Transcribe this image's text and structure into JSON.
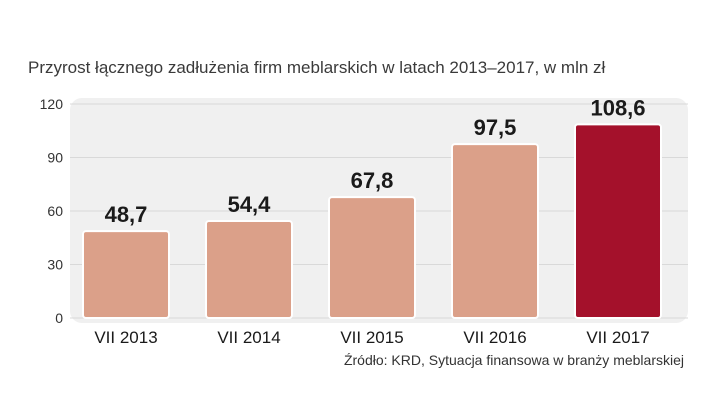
{
  "chart_data": {
    "type": "bar",
    "title": "Przyrost łącznego zadłużenia firm meblarskich w latach 2013–2017, w mln zł",
    "categories": [
      "VII 2013",
      "VII 2014",
      "VII 2015",
      "VII 2016",
      "VII 2017"
    ],
    "values": [
      48.7,
      54.4,
      67.8,
      97.5,
      108.6
    ],
    "value_labels": [
      "48,7",
      "54,4",
      "67,8",
      "97,5",
      "108,6"
    ],
    "yticks": [
      0,
      30,
      60,
      90,
      120
    ],
    "ylim": [
      0,
      120
    ],
    "xlabel": "",
    "ylabel": "",
    "grid": true,
    "colors": {
      "bar": "#dba089",
      "highlight": "#a4112b",
      "panel": "#f0f0f0",
      "grid": "#d9d9d9"
    },
    "highlight_index": 4
  },
  "source": "Źródło: KRD, Sytuacja finansowa w branży meblarskiej"
}
